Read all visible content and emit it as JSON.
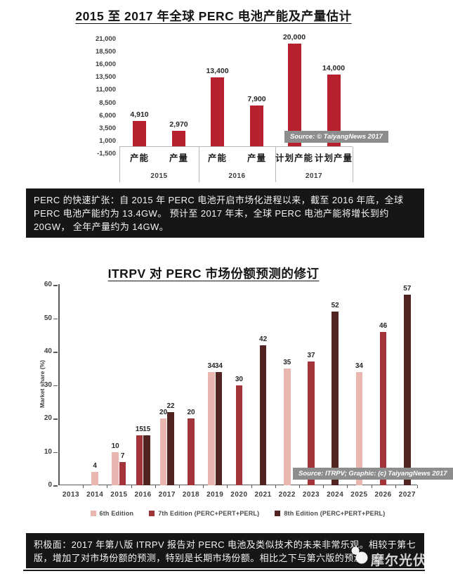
{
  "chart_data": [
    {
      "type": "bar",
      "title": "2015 至 2017 年全球 PERC 电池产能及产量估计",
      "xlabel": "",
      "ylabel": "",
      "ylim": [
        -1500,
        21000
      ],
      "grid": false,
      "bar_color": "#b7202e",
      "y_ticks": [
        "21,000",
        "18,500",
        "16,000",
        "13,500",
        "11,000",
        "8,500",
        "6,000",
        "3,500",
        "1,000",
        "-1,500"
      ],
      "source": "Source: © TaiyangNews 2017",
      "groups": [
        {
          "year": "2015",
          "bars": [
            {
              "label": "产能",
              "value": 4910,
              "display": "4,910"
            },
            {
              "label": "产量",
              "value": 2970,
              "display": "2,970"
            }
          ]
        },
        {
          "year": "2016",
          "bars": [
            {
              "label": "产能",
              "value": 13400,
              "display": "13,400"
            },
            {
              "label": "产量",
              "value": 7900,
              "display": "7,900"
            }
          ]
        },
        {
          "year": "2017",
          "bars": [
            {
              "label": "计划产能",
              "value": 20000,
              "display": "20,000"
            },
            {
              "label": "计划产量",
              "value": 14000,
              "display": "14,000"
            }
          ]
        }
      ]
    },
    {
      "type": "bar",
      "title": "ITRPV 对 PERC 市场份额预测的修订",
      "xlabel": "",
      "ylabel": "Market share (%)",
      "ylim": [
        0,
        60
      ],
      "grid": false,
      "legend_position": "bottom",
      "y_ticks": [
        0,
        10,
        20,
        30,
        40,
        50,
        60
      ],
      "categories": [
        "2013",
        "2014",
        "2015",
        "2016",
        "2017",
        "2018",
        "2019",
        "2020",
        "2021",
        "2022",
        "2023",
        "2024",
        "2025",
        "2026",
        "2027"
      ],
      "source": "Source: ITRPV; Graphic: (c) TaiyangNews 2017",
      "series": [
        {
          "name": "6th Edition",
          "color": "#e9b6b0",
          "points": {
            "2014": 4,
            "2015": 10,
            "2017": 20,
            "2019": 34,
            "2022": 35,
            "2025": 34
          }
        },
        {
          "name": "7th Edition (PERC+PERT+PERL)",
          "color": "#a3343a",
          "points": {
            "2015": 7,
            "2016": 15,
            "2018": 20,
            "2020": 30,
            "2023": 37,
            "2026": 46
          }
        },
        {
          "name": "8th Edition (PERC+PERT+PERL)",
          "color": "#522421",
          "points": {
            "2016": 15,
            "2017": 22,
            "2019": 34,
            "2021": 42,
            "2024": 52,
            "2027": 57
          }
        }
      ]
    }
  ],
  "captions": {
    "band1": "PERC 的快速扩张：自 2015 年 PERC 电池开启市场化进程以来，截至 2016 年底，全球 PERC 电池产能约为 13.4GW。 预计至 2017 年末，全球 PERC 电池产能将增长到约 20GW， 全年产量约为 14GW。",
    "band2": "积极面：2017 年第八版 ITRPV 报告对 PERC 电池及类似技术的未来非常乐观。相较于第七版，增加了对市场份额的预测，特别是长期市场份额。相比之下与第六版的预测"
  },
  "watermark": {
    "text": "摩尔光伏"
  },
  "colors": {
    "band_background": "#161616",
    "badge_background": "#8d8d8d",
    "chart1_bar": "#b7202e",
    "series_6th": "#e9b6b0",
    "series_7th": "#a3343a",
    "series_8th": "#522421"
  }
}
